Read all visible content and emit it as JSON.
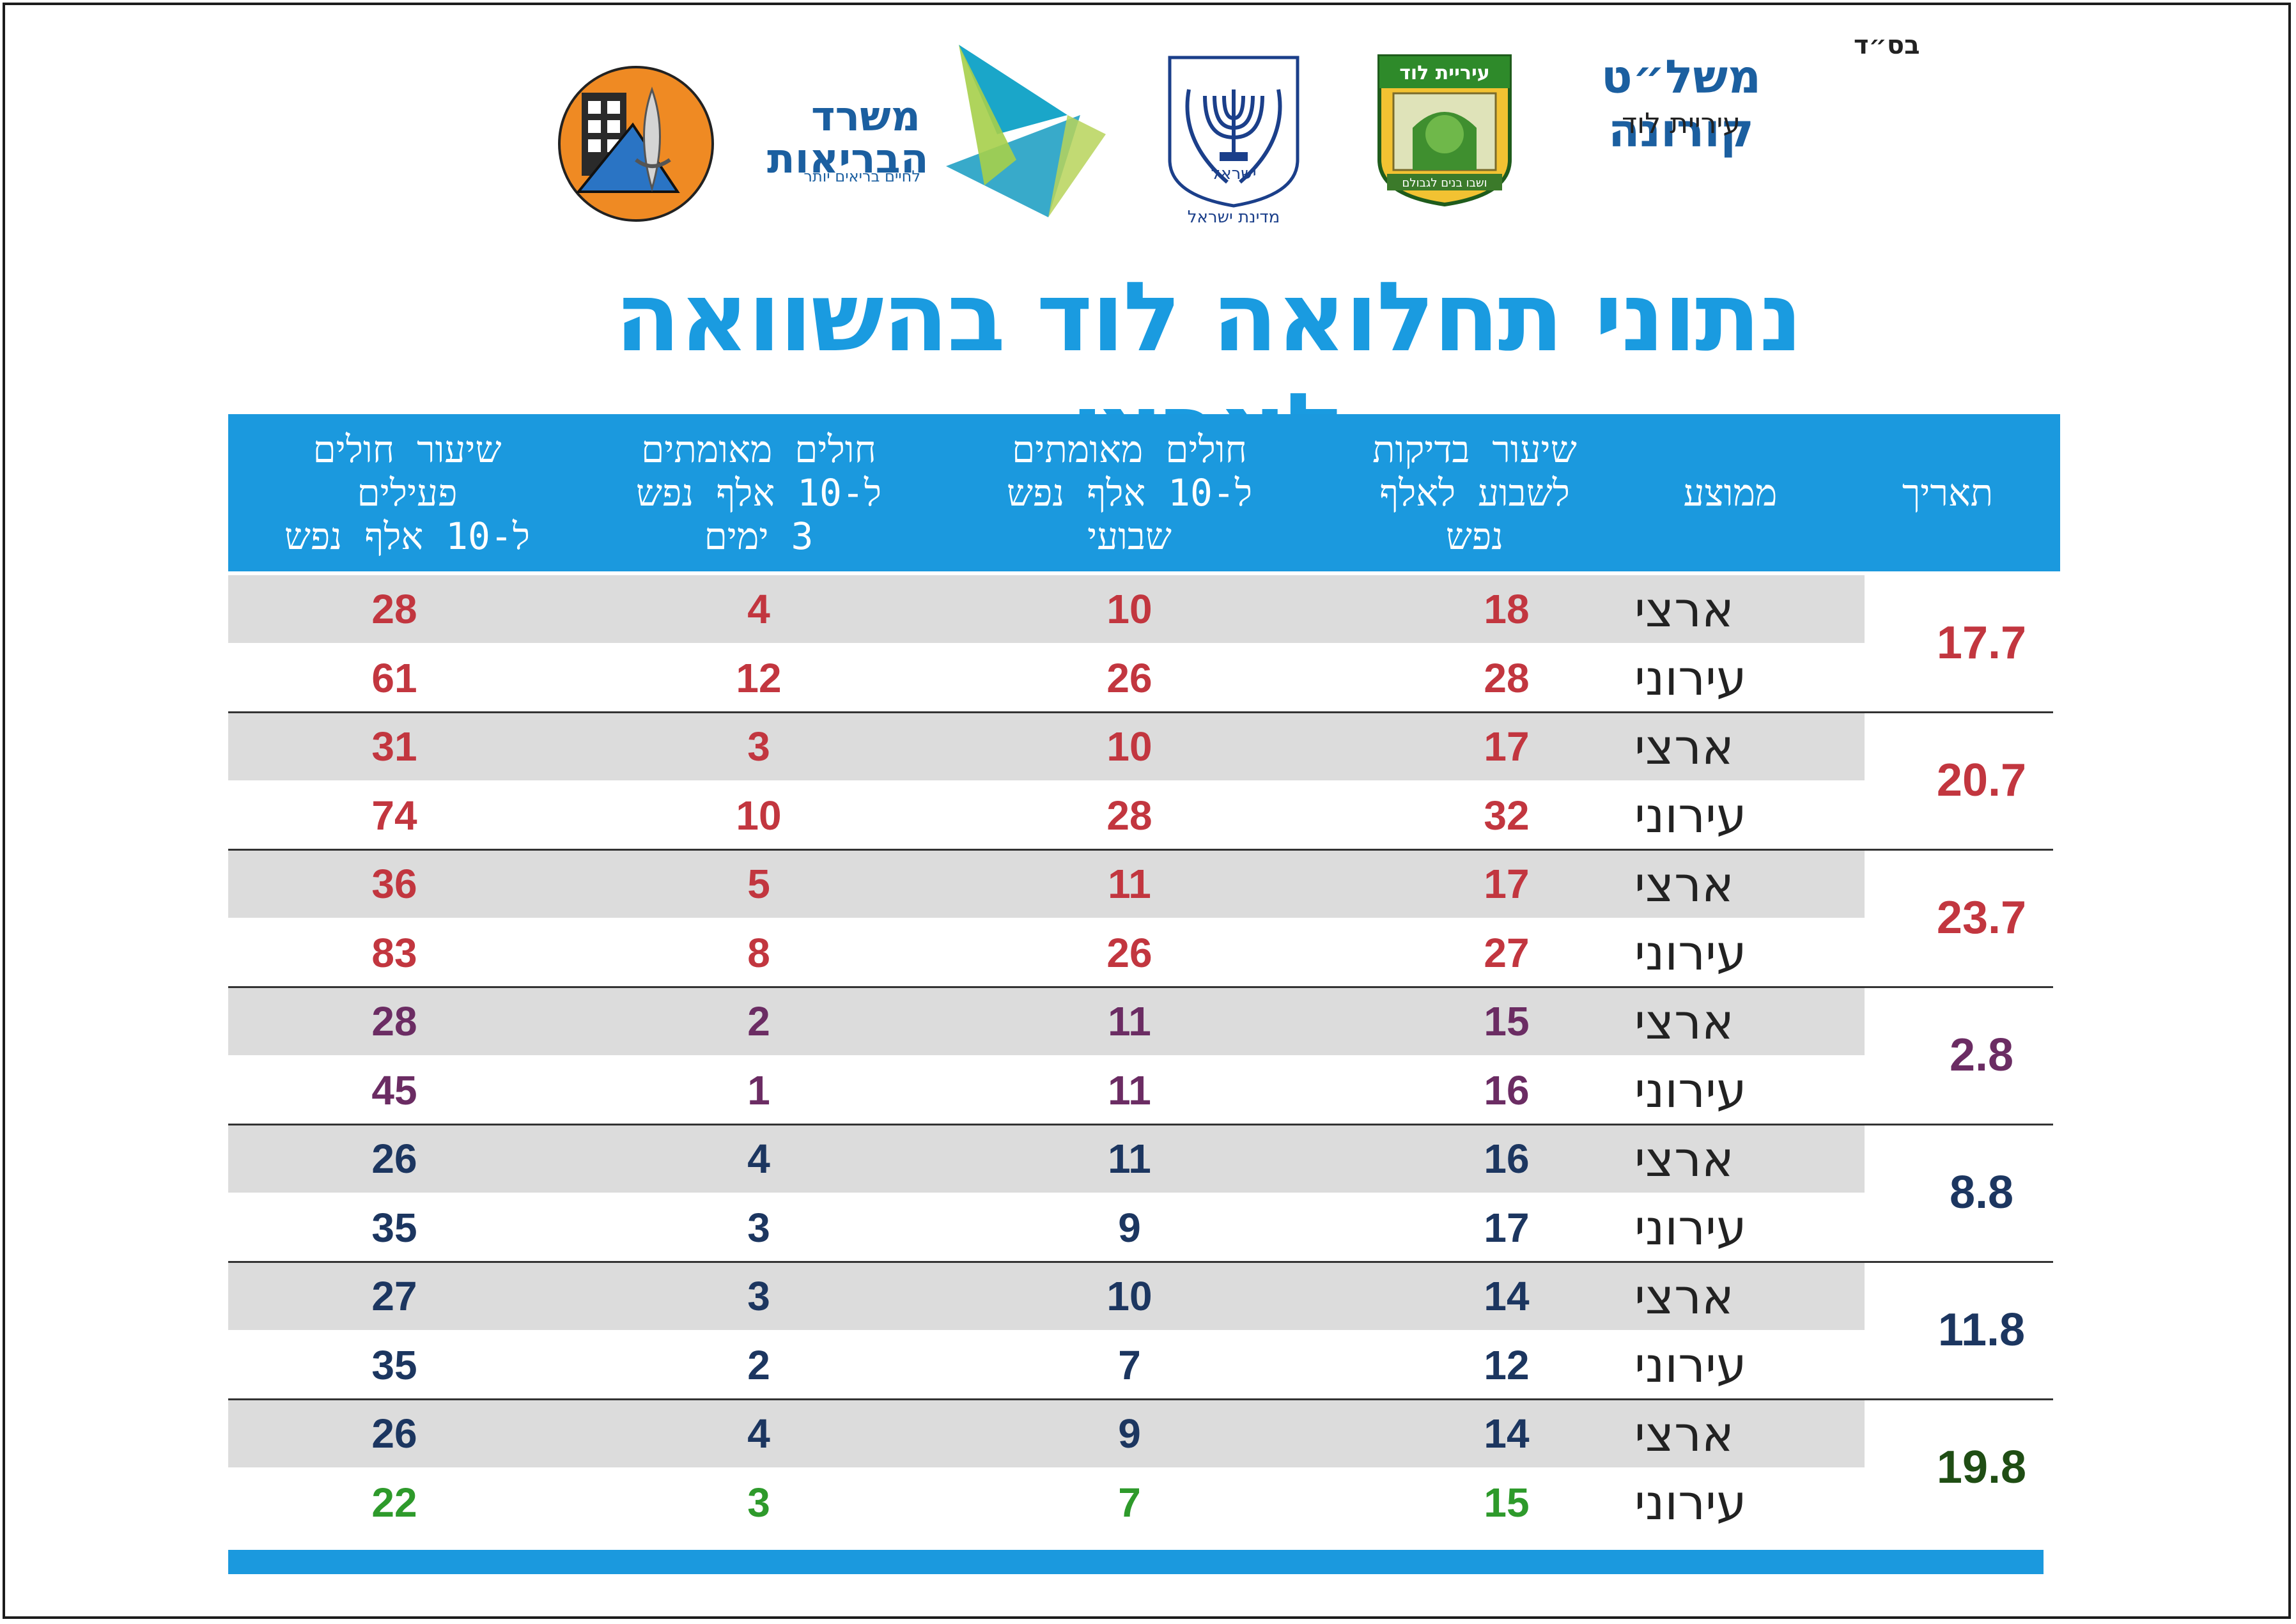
{
  "header": {
    "bsd": "בס״ד",
    "brand_title": "משל״ט קורונה",
    "brand_subtitle": "עיריית לוד",
    "lod_logo_text": "עיריית לוד",
    "lod_logo_motto": "ושבו בנים לגבולם",
    "emblem_word": "ישראל",
    "emblem_caption": "מדינת ישראל",
    "moh_name": "משרד\nהבריאות",
    "moh_tagline": "לחיים בריאים יותר"
  },
  "title": "נתוני תחלואה לוד בהשוואה לארצי",
  "columns": [
    "תאריך",
    "ממוצע",
    "שיעור בדיקות\nלשבוע לאלף\nנפש",
    "חולים מאומתים\nל-10 אלף נפש\nשבועי",
    "חולים מאומתים\nל-10 אלף נפש\n3 ימים",
    "שיעור חולים\nפעילים\nל-10 אלף נפש"
  ],
  "groups": [
    {
      "date": "17.7",
      "date_color": "#c2363f",
      "value_color": "#c2363f",
      "rows": [
        {
          "type": "ארצי",
          "tests": "18",
          "weekly": "10",
          "three_day": "4",
          "active": "28"
        },
        {
          "type": "עירוני",
          "tests": "28",
          "weekly": "26",
          "three_day": "12",
          "active": "61"
        }
      ]
    },
    {
      "date": "20.7",
      "date_color": "#c2363f",
      "value_color": "#c2363f",
      "rows": [
        {
          "type": "ארצי",
          "tests": "17",
          "weekly": "10",
          "three_day": "3",
          "active": "31"
        },
        {
          "type": "עירוני",
          "tests": "32",
          "weekly": "28",
          "three_day": "10",
          "active": "74"
        }
      ]
    },
    {
      "date": "23.7",
      "date_color": "#c2363f",
      "value_color": "#c2363f",
      "rows": [
        {
          "type": "ארצי",
          "tests": "17",
          "weekly": "11",
          "three_day": "5",
          "active": "36"
        },
        {
          "type": "עירוני",
          "tests": "27",
          "weekly": "26",
          "three_day": "8",
          "active": "83"
        }
      ]
    },
    {
      "date": "2.8",
      "date_color": "#6b2c63",
      "value_color": "#6b2c63",
      "rows": [
        {
          "type": "ארצי",
          "tests": "15",
          "weekly": "11",
          "three_day": "2",
          "active": "28"
        },
        {
          "type": "עירוני",
          "tests": "16",
          "weekly": "11",
          "three_day": "1",
          "active": "45"
        }
      ]
    },
    {
      "date": "8.8",
      "date_color": "#1c3660",
      "value_color": "#1c3660",
      "rows": [
        {
          "type": "ארצי",
          "tests": "16",
          "weekly": "11",
          "three_day": "4",
          "active": "26"
        },
        {
          "type": "עירוני",
          "tests": "17",
          "weekly": "9",
          "three_day": "3",
          "active": "35"
        }
      ]
    },
    {
      "date": "11.8",
      "date_color": "#1c3660",
      "value_color": "#1c3660",
      "rows": [
        {
          "type": "ארצי",
          "tests": "14",
          "weekly": "10",
          "three_day": "3",
          "active": "27"
        },
        {
          "type": "עירוני",
          "tests": "12",
          "weekly": "7",
          "three_day": "2",
          "active": "35"
        }
      ]
    },
    {
      "date": "19.8",
      "date_color": "#1f4d14",
      "value_color": "#1c3660",
      "rows": [
        {
          "type": "ארצי",
          "tests": "14",
          "weekly": "9",
          "three_day": "4",
          "active": "26"
        },
        {
          "type": "עירוני",
          "tests": "15",
          "weekly": "7",
          "three_day": "3",
          "active": "22",
          "color": "#2e9a2b"
        }
      ]
    }
  ],
  "colors": {
    "accent": "#1b99de",
    "brand_blue": "#1b5fa0",
    "shade": "#dcdcdc"
  }
}
